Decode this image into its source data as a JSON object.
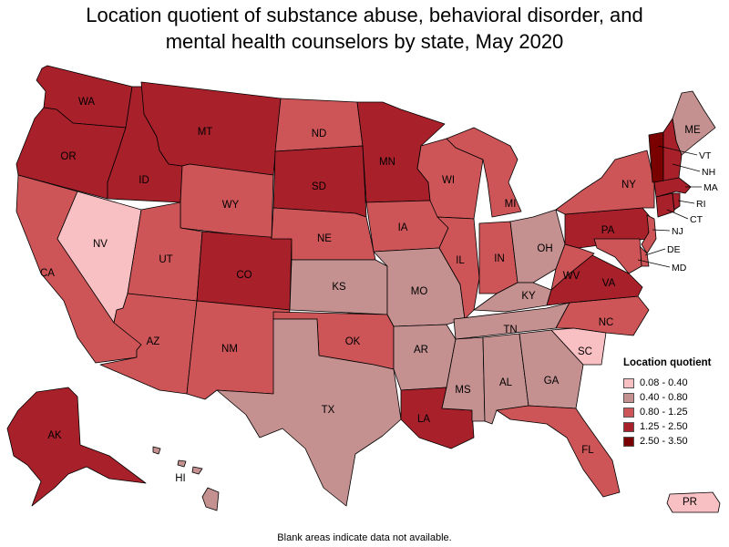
{
  "title_line1": "Location quotient of substance abuse, behavioral disorder, and",
  "title_line2": "mental health counselors by state, May 2020",
  "footnote": "Blank areas indicate data not available.",
  "legend": {
    "title": "Location quotient",
    "classes": [
      {
        "id": "c1",
        "label": "0.08 - 0.40",
        "color": "#f9c0c4"
      },
      {
        "id": "c2",
        "label": "0.40 - 0.80",
        "color": "#c49090"
      },
      {
        "id": "c3",
        "label": "0.80 - 1.25",
        "color": "#cd5558"
      },
      {
        "id": "c4",
        "label": "1.25 - 2.50",
        "color": "#a8202a"
      },
      {
        "id": "c5",
        "label": "2.50 - 3.50",
        "color": "#7a0000"
      }
    ]
  },
  "states": [
    {
      "abbr": "WA",
      "class": "c4"
    },
    {
      "abbr": "OR",
      "class": "c4"
    },
    {
      "abbr": "CA",
      "class": "c3"
    },
    {
      "abbr": "NV",
      "class": "c1"
    },
    {
      "abbr": "ID",
      "class": "c4"
    },
    {
      "abbr": "MT",
      "class": "c4"
    },
    {
      "abbr": "WY",
      "class": "c3"
    },
    {
      "abbr": "UT",
      "class": "c3"
    },
    {
      "abbr": "AZ",
      "class": "c3"
    },
    {
      "abbr": "CO",
      "class": "c4"
    },
    {
      "abbr": "NM",
      "class": "c3"
    },
    {
      "abbr": "ND",
      "class": "c3"
    },
    {
      "abbr": "SD",
      "class": "c4"
    },
    {
      "abbr": "NE",
      "class": "c3"
    },
    {
      "abbr": "KS",
      "class": "c2"
    },
    {
      "abbr": "OK",
      "class": "c3"
    },
    {
      "abbr": "TX",
      "class": "c2"
    },
    {
      "abbr": "MN",
      "class": "c4"
    },
    {
      "abbr": "IA",
      "class": "c3"
    },
    {
      "abbr": "MO",
      "class": "c2"
    },
    {
      "abbr": "AR",
      "class": "c2"
    },
    {
      "abbr": "LA",
      "class": "c4"
    },
    {
      "abbr": "WI",
      "class": "c3"
    },
    {
      "abbr": "IL",
      "class": "c3"
    },
    {
      "abbr": "MI",
      "class": "c3"
    },
    {
      "abbr": "IN",
      "class": "c3"
    },
    {
      "abbr": "OH",
      "class": "c2"
    },
    {
      "abbr": "KY",
      "class": "c2"
    },
    {
      "abbr": "TN",
      "class": "c2"
    },
    {
      "abbr": "MS",
      "class": "c2"
    },
    {
      "abbr": "AL",
      "class": "c2"
    },
    {
      "abbr": "GA",
      "class": "c2"
    },
    {
      "abbr": "FL",
      "class": "c3"
    },
    {
      "abbr": "SC",
      "class": "c1"
    },
    {
      "abbr": "NC",
      "class": "c3"
    },
    {
      "abbr": "VA",
      "class": "c4"
    },
    {
      "abbr": "WV",
      "class": "c3"
    },
    {
      "abbr": "PA",
      "class": "c4"
    },
    {
      "abbr": "NY",
      "class": "c3"
    },
    {
      "abbr": "ME",
      "class": "c2"
    },
    {
      "abbr": "VT",
      "class": "c5"
    },
    {
      "abbr": "NH",
      "class": "c4"
    },
    {
      "abbr": "MA",
      "class": "c4"
    },
    {
      "abbr": "RI",
      "class": "c4"
    },
    {
      "abbr": "CT",
      "class": "c4"
    },
    {
      "abbr": "NJ",
      "class": "c3"
    },
    {
      "abbr": "DE",
      "class": "c3"
    },
    {
      "abbr": "MD",
      "class": "c3"
    },
    {
      "abbr": "AK",
      "class": "c4"
    },
    {
      "abbr": "HI",
      "class": "c2"
    },
    {
      "abbr": "PR",
      "class": "c1"
    }
  ]
}
